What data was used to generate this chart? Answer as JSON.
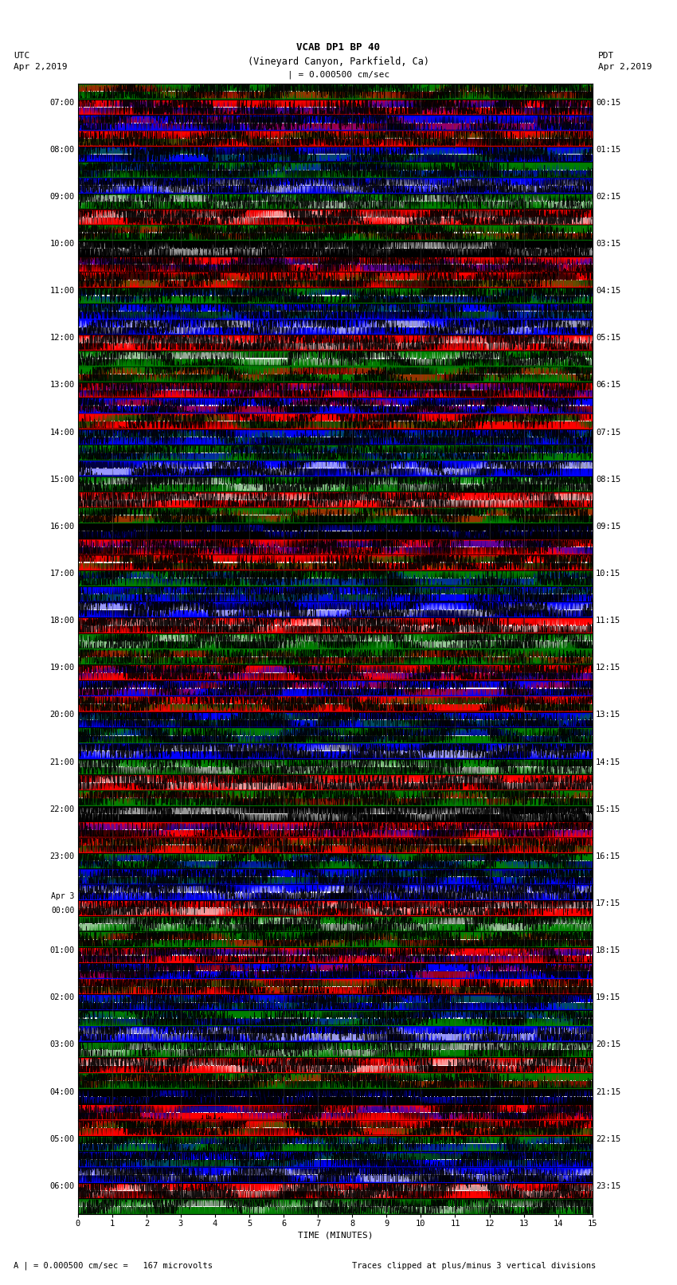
{
  "title_line1": "VCAB DP1 BP 40",
  "title_line2": "(Vineyard Canyon, Parkfield, Ca)",
  "scale_label": "| = 0.000500 cm/sec",
  "footer_left": "A | = 0.000500 cm/sec =   167 microvolts",
  "footer_right": "Traces clipped at plus/minus 3 vertical divisions",
  "utc_times": [
    "07:00",
    "08:00",
    "09:00",
    "10:00",
    "11:00",
    "12:00",
    "13:00",
    "14:00",
    "15:00",
    "16:00",
    "17:00",
    "18:00",
    "19:00",
    "20:00",
    "21:00",
    "22:00",
    "23:00",
    "Apr 3\n00:00",
    "01:00",
    "02:00",
    "03:00",
    "04:00",
    "05:00",
    "06:00"
  ],
  "pdt_times": [
    "00:15",
    "01:15",
    "02:15",
    "03:15",
    "04:15",
    "05:15",
    "06:15",
    "07:15",
    "08:15",
    "09:15",
    "10:15",
    "11:15",
    "12:15",
    "13:15",
    "14:15",
    "15:15",
    "16:15",
    "17:15",
    "18:15",
    "19:15",
    "20:15",
    "21:15",
    "22:15",
    "23:15"
  ],
  "num_rows": 24,
  "x_ticks": [
    0,
    1,
    2,
    3,
    4,
    5,
    6,
    7,
    8,
    9,
    10,
    11,
    12,
    13,
    14,
    15
  ],
  "x_tick_labels": [
    "0",
    "1",
    "2",
    "3",
    "4",
    "5",
    "6",
    "7",
    "8",
    "9",
    "10",
    "11",
    "12",
    "13",
    "14",
    "15"
  ],
  "colors": {
    "green": "#008000",
    "red": "#ff0000",
    "blue": "#0000ff",
    "black": "#000000",
    "white": "#ffffff",
    "background": "#ffffff"
  },
  "fig_width": 8.5,
  "fig_height": 16.13,
  "dpi": 100,
  "seed": 42,
  "samples": 3000,
  "num_traces": 3,
  "amplitude": 1.0
}
